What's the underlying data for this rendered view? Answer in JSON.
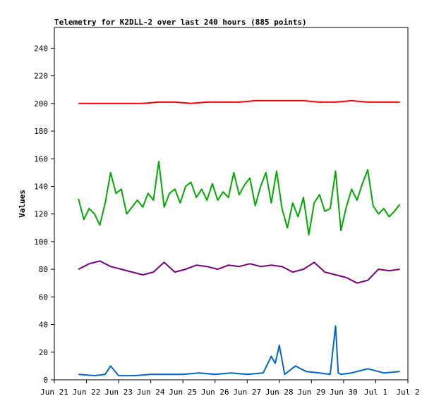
{
  "chart_data": {
    "type": "line",
    "title": "Telemetry for K2DLL-2 over last 240 hours (885 points)",
    "ylabel": "Values",
    "xlabel": "",
    "ylim": [
      0,
      255
    ],
    "yticks": [
      0,
      20,
      40,
      60,
      80,
      100,
      120,
      140,
      160,
      180,
      200,
      220,
      240
    ],
    "x_start": "Jun 21",
    "x_end": "Jul 2",
    "xtick_labels": [
      "Jun 21",
      "Jun 22",
      "Jun 23",
      "Jun 24",
      "Jun 25",
      "Jun 26",
      "Jun 27",
      "Jun 28",
      "Jun 29",
      "Jun 30",
      "Jul 1",
      "Jul 2"
    ],
    "grid": false,
    "legend": "none",
    "series": [
      {
        "color": "#ff0000",
        "x": [
          "Jun 21 18:00",
          "Jun 22 06:00",
          "Jun 22 18:00",
          "Jun 23 06:00",
          "Jun 23 18:00",
          "Jun 24 06:00",
          "Jun 24 18:00",
          "Jun 25 06:00",
          "Jun 25 18:00",
          "Jun 26 06:00",
          "Jun 26 18:00",
          "Jun 27 06:00",
          "Jun 27 18:00",
          "Jun 28 06:00",
          "Jun 28 18:00",
          "Jun 29 06:00",
          "Jun 29 18:00",
          "Jun 30 06:00",
          "Jun 30 18:00",
          "Jul 1 06:00",
          "Jul 1 18:00"
        ],
        "y": [
          200,
          200,
          200,
          200,
          200,
          201,
          201,
          200,
          201,
          201,
          201,
          202,
          202,
          202,
          202,
          201,
          201,
          202,
          201,
          201,
          201
        ]
      },
      {
        "color": "#00aa00",
        "x": [
          "Jun 21 18:00",
          "Jun 21 22:00",
          "Jun 22 02:00",
          "Jun 22 06:00",
          "Jun 22 10:00",
          "Jun 22 14:00",
          "Jun 22 18:00",
          "Jun 22 22:00",
          "Jun 23 02:00",
          "Jun 23 06:00",
          "Jun 23 10:00",
          "Jun 23 14:00",
          "Jun 23 18:00",
          "Jun 23 22:00",
          "Jun 24 02:00",
          "Jun 24 06:00",
          "Jun 24 10:00",
          "Jun 24 14:00",
          "Jun 24 18:00",
          "Jun 24 22:00",
          "Jun 25 02:00",
          "Jun 25 06:00",
          "Jun 25 10:00",
          "Jun 25 14:00",
          "Jun 25 18:00",
          "Jun 25 22:00",
          "Jun 26 02:00",
          "Jun 26 06:00",
          "Jun 26 10:00",
          "Jun 26 14:00",
          "Jun 26 18:00",
          "Jun 26 22:00",
          "Jun 27 02:00",
          "Jun 27 06:00",
          "Jun 27 10:00",
          "Jun 27 14:00",
          "Jun 27 18:00",
          "Jun 27 22:00",
          "Jun 28 02:00",
          "Jun 28 06:00",
          "Jun 28 10:00",
          "Jun 28 14:00",
          "Jun 28 18:00",
          "Jun 28 22:00",
          "Jun 29 02:00",
          "Jun 29 06:00",
          "Jun 29 10:00",
          "Jun 29 14:00",
          "Jun 29 18:00",
          "Jun 29 22:00",
          "Jun 30 02:00",
          "Jun 30 06:00",
          "Jun 30 10:00",
          "Jun 30 14:00",
          "Jun 30 18:00",
          "Jun 30 22:00",
          "Jul 1 02:00",
          "Jul 1 06:00",
          "Jul 1 10:00",
          "Jul 1 14:00",
          "Jul 1 18:00"
        ],
        "y": [
          131,
          116,
          124,
          120,
          112,
          128,
          150,
          135,
          138,
          120,
          125,
          130,
          125,
          135,
          130,
          158,
          125,
          135,
          138,
          128,
          140,
          143,
          132,
          138,
          130,
          142,
          130,
          136,
          132,
          150,
          134,
          141,
          146,
          126,
          140,
          150,
          128,
          151,
          124,
          110,
          128,
          118,
          132,
          105,
          128,
          134,
          122,
          124,
          151,
          108,
          125,
          138,
          130,
          142,
          152,
          126,
          120,
          124,
          118,
          122,
          127
        ]
      },
      {
        "color": "#770077",
        "x": [
          "Jun 21 18:00",
          "Jun 22 02:00",
          "Jun 22 10:00",
          "Jun 22 18:00",
          "Jun 23 02:00",
          "Jun 23 10:00",
          "Jun 23 18:00",
          "Jun 24 02:00",
          "Jun 24 10:00",
          "Jun 24 18:00",
          "Jun 25 02:00",
          "Jun 25 10:00",
          "Jun 25 18:00",
          "Jun 26 02:00",
          "Jun 26 10:00",
          "Jun 26 18:00",
          "Jun 27 02:00",
          "Jun 27 10:00",
          "Jun 27 18:00",
          "Jun 28 02:00",
          "Jun 28 10:00",
          "Jun 28 18:00",
          "Jun 29 02:00",
          "Jun 29 10:00",
          "Jun 29 18:00",
          "Jun 30 02:00",
          "Jun 30 10:00",
          "Jun 30 18:00",
          "Jul 1 02:00",
          "Jul 1 10:00",
          "Jul 1 18:00"
        ],
        "y": [
          80,
          84,
          86,
          82,
          80,
          78,
          76,
          78,
          85,
          78,
          80,
          83,
          82,
          80,
          83,
          82,
          84,
          82,
          83,
          82,
          78,
          80,
          85,
          78,
          76,
          74,
          70,
          72,
          80,
          79,
          80
        ]
      },
      {
        "color": "#0066cc",
        "x": [
          "Jun 21 18:00",
          "Jun 22 06:00",
          "Jun 22 14:00",
          "Jun 22 18:00",
          "Jun 23 00:00",
          "Jun 23 12:00",
          "Jun 24 00:00",
          "Jun 24 12:00",
          "Jun 25 00:00",
          "Jun 25 12:00",
          "Jun 26 00:00",
          "Jun 26 12:00",
          "Jun 27 00:00",
          "Jun 27 12:00",
          "Jun 27 18:00",
          "Jun 27 21:00",
          "Jun 28 00:00",
          "Jun 28 04:00",
          "Jun 28 12:00",
          "Jun 28 20:00",
          "Jun 29 06:00",
          "Jun 29 14:00",
          "Jun 29 18:00",
          "Jun 29 20:00",
          "Jun 29 22:00",
          "Jun 30 06:00",
          "Jun 30 18:00",
          "Jul 1 06:00",
          "Jul 1 18:00"
        ],
        "y": [
          4,
          3,
          4,
          10,
          3,
          3,
          4,
          4,
          4,
          5,
          4,
          5,
          4,
          5,
          17,
          12,
          25,
          4,
          10,
          6,
          5,
          4,
          39,
          5,
          4,
          5,
          8,
          5,
          6
        ]
      }
    ]
  }
}
